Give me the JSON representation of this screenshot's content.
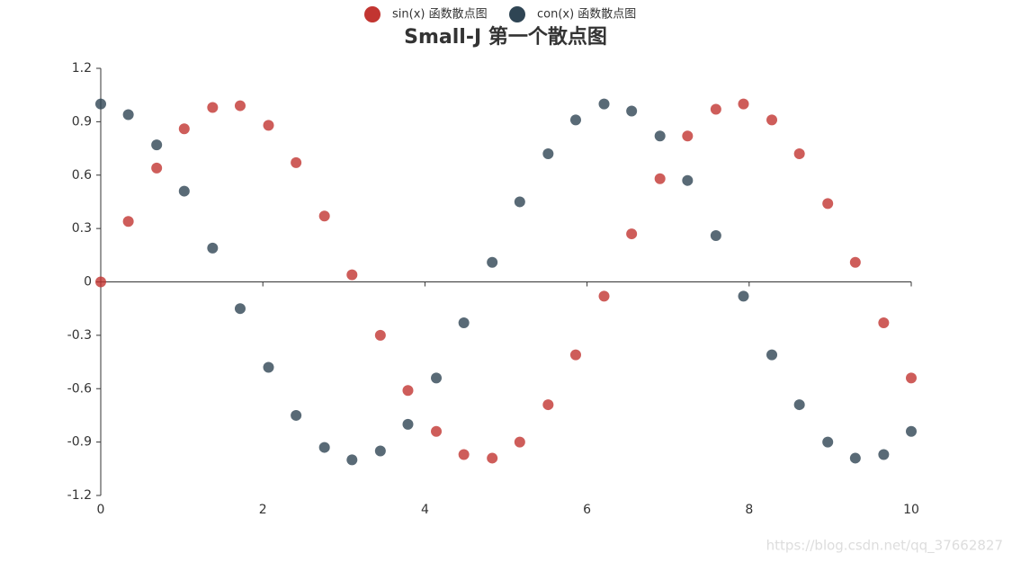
{
  "chart_data": {
    "type": "scatter",
    "title": "Small-J 第一个散点图",
    "x": [
      0,
      0.34,
      0.69,
      1.03,
      1.38,
      1.72,
      2.07,
      2.41,
      2.76,
      3.1,
      3.45,
      3.79,
      4.14,
      4.48,
      4.83,
      5.17,
      5.52,
      5.86,
      6.21,
      6.55,
      6.9,
      7.24,
      7.59,
      7.93,
      8.28,
      8.62,
      8.97,
      9.31,
      9.66,
      10
    ],
    "series": [
      {
        "name": "sin(x) 函数散点图",
        "color": "#c23531",
        "values": [
          0,
          0.34,
          0.64,
          0.86,
          0.98,
          0.99,
          0.88,
          0.67,
          0.37,
          0.04,
          -0.3,
          -0.61,
          -0.84,
          -0.97,
          -0.99,
          -0.9,
          -0.69,
          -0.41,
          -0.08,
          0.27,
          0.58,
          0.82,
          0.97,
          1.0,
          0.91,
          0.72,
          0.44,
          0.11,
          -0.23,
          -0.54
        ]
      },
      {
        "name": "con(x) 函数散点图",
        "color": "#2f4554",
        "values": [
          1,
          0.94,
          0.77,
          0.51,
          0.19,
          -0.15,
          -0.48,
          -0.75,
          -0.93,
          -1.0,
          -0.95,
          -0.8,
          -0.54,
          -0.23,
          0.11,
          0.45,
          0.72,
          0.91,
          1.0,
          0.96,
          0.82,
          0.57,
          0.26,
          -0.08,
          -0.41,
          -0.69,
          -0.9,
          -0.99,
          -0.97,
          -0.84
        ]
      }
    ],
    "xlim": [
      0,
      10
    ],
    "xticks": [
      0,
      2,
      4,
      6,
      8,
      10
    ],
    "ylim": [
      -1.2,
      1.2
    ],
    "yticks": [
      -1.2,
      -0.9,
      -0.6,
      -0.3,
      0,
      0.3,
      0.6,
      0.9,
      1.2
    ],
    "grid": false,
    "legend": "top",
    "watermark": "https://blog.csdn.net/qq_37662827"
  }
}
